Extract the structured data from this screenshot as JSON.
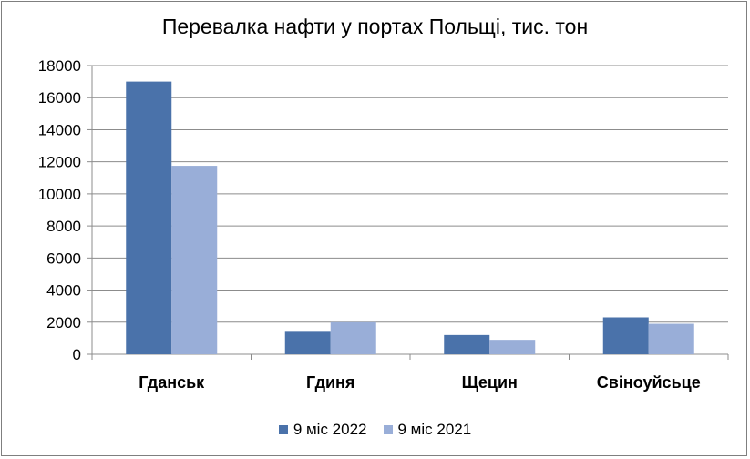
{
  "chart_data": {
    "type": "bar",
    "title": "Перевалка нафти у портах Польщі, тис. тон",
    "categories": [
      "Гданськ",
      "Гдиня",
      "Щецин",
      "Свіноуйсьце"
    ],
    "series": [
      {
        "name": "9 міс 2022",
        "values": [
          17000,
          1400,
          1200,
          2300
        ],
        "color": "#4a72aa"
      },
      {
        "name": "9 міс 2021",
        "values": [
          11750,
          2000,
          900,
          1900
        ],
        "color": "#99aed8"
      }
    ],
    "ylim": [
      0,
      18000
    ],
    "yticks": [
      "0",
      "2000",
      "4000",
      "6000",
      "8000",
      "10000",
      "12000",
      "14000",
      "16000",
      "18000"
    ],
    "grid": true,
    "legend_position": "bottom"
  }
}
